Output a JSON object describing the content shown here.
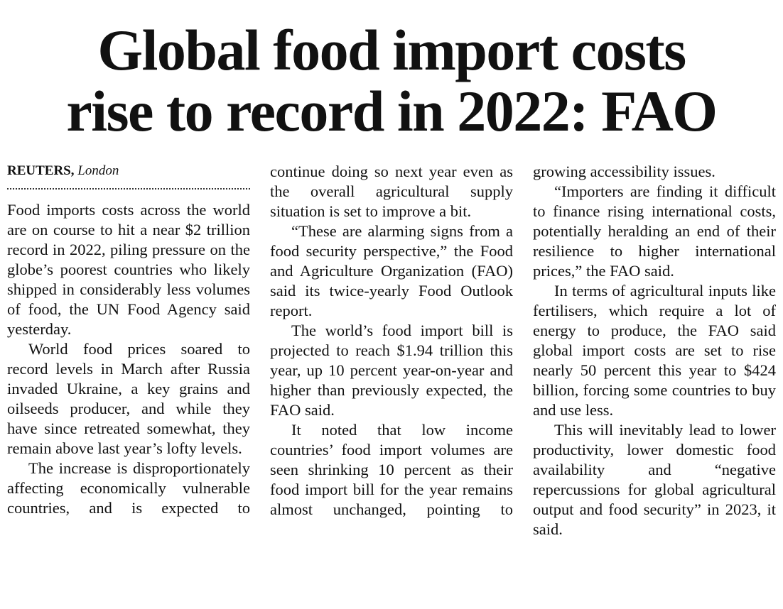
{
  "headline": [
    "Global food import costs",
    "rise to record in 2022: FAO"
  ],
  "byline": {
    "agency": "REUTERS,",
    "location": "London"
  },
  "columns": [
    [
      "Food imports costs across the world are on course to hit a near $2 trillion record in 2022, piling pressure on the globe’s poorest countries who likely shipped in considerably less volumes of food, the UN Food Agency said yesterday.",
      "World food prices soared to record levels in March after Russia invaded Ukraine, a key grains and oilseeds producer, and while they have since retreated somewhat, they remain above last year’s lofty levels.",
      "The increase is disproportionately affecting economically vulnerable countries, and is expected to"
    ],
    [
      "continue doing so next year even as the overall agricultural supply situation is set to improve a bit.",
      "“These are alarming signs from a food security perspective,” the Food and Agriculture Organization (FAO) said its twice-yearly Food Outlook report.",
      "The world’s food import bill is projected to reach $1.94 trillion this year, up 10 percent year-on-year and higher than previously expected, the FAO said.",
      "It noted that low income countries’ food import volumes are seen shrinking 10 percent as their food import bill for the year remains almost unchanged, pointing to"
    ],
    [
      "growing accessibility issues.",
      "“Importers are finding it difficult to finance rising international costs, potentially heralding an end of their resilience to higher international prices,” the FAO said.",
      "In terms of agricultural inputs like fertilisers, which require a lot of energy to produce, the FAO said global import costs are set to rise nearly 50 percent this year to $424 billion, forcing some countries to buy and use less.",
      "This will inevitably lead to lower productivity, lower domestic food availability and “negative repercussions for global agricultural output and food security” in 2023, it said."
    ]
  ]
}
